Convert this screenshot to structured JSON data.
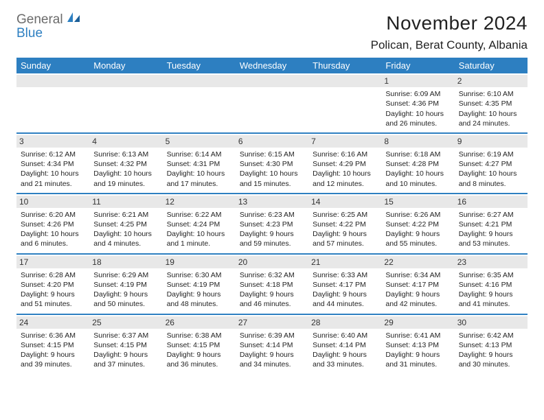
{
  "brand": {
    "general": "General",
    "blue": "Blue"
  },
  "title": "November 2024",
  "location": "Polican, Berat County, Albania",
  "colors": {
    "header_bg": "#2d7fc1",
    "header_text": "#ffffff",
    "daynum_bg": "#e8e8e8",
    "week_sep": "#2d7fc1",
    "text": "#222222",
    "page_bg": "#ffffff"
  },
  "weekdays": [
    "Sunday",
    "Monday",
    "Tuesday",
    "Wednesday",
    "Thursday",
    "Friday",
    "Saturday"
  ],
  "weeks": [
    [
      null,
      null,
      null,
      null,
      null,
      {
        "n": "1",
        "sr": "6:09 AM",
        "ss": "4:36 PM",
        "dl": "10 hours and 26 minutes."
      },
      {
        "n": "2",
        "sr": "6:10 AM",
        "ss": "4:35 PM",
        "dl": "10 hours and 24 minutes."
      }
    ],
    [
      {
        "n": "3",
        "sr": "6:12 AM",
        "ss": "4:34 PM",
        "dl": "10 hours and 21 minutes."
      },
      {
        "n": "4",
        "sr": "6:13 AM",
        "ss": "4:32 PM",
        "dl": "10 hours and 19 minutes."
      },
      {
        "n": "5",
        "sr": "6:14 AM",
        "ss": "4:31 PM",
        "dl": "10 hours and 17 minutes."
      },
      {
        "n": "6",
        "sr": "6:15 AM",
        "ss": "4:30 PM",
        "dl": "10 hours and 15 minutes."
      },
      {
        "n": "7",
        "sr": "6:16 AM",
        "ss": "4:29 PM",
        "dl": "10 hours and 12 minutes."
      },
      {
        "n": "8",
        "sr": "6:18 AM",
        "ss": "4:28 PM",
        "dl": "10 hours and 10 minutes."
      },
      {
        "n": "9",
        "sr": "6:19 AM",
        "ss": "4:27 PM",
        "dl": "10 hours and 8 minutes."
      }
    ],
    [
      {
        "n": "10",
        "sr": "6:20 AM",
        "ss": "4:26 PM",
        "dl": "10 hours and 6 minutes."
      },
      {
        "n": "11",
        "sr": "6:21 AM",
        "ss": "4:25 PM",
        "dl": "10 hours and 4 minutes."
      },
      {
        "n": "12",
        "sr": "6:22 AM",
        "ss": "4:24 PM",
        "dl": "10 hours and 1 minute."
      },
      {
        "n": "13",
        "sr": "6:23 AM",
        "ss": "4:23 PM",
        "dl": "9 hours and 59 minutes."
      },
      {
        "n": "14",
        "sr": "6:25 AM",
        "ss": "4:22 PM",
        "dl": "9 hours and 57 minutes."
      },
      {
        "n": "15",
        "sr": "6:26 AM",
        "ss": "4:22 PM",
        "dl": "9 hours and 55 minutes."
      },
      {
        "n": "16",
        "sr": "6:27 AM",
        "ss": "4:21 PM",
        "dl": "9 hours and 53 minutes."
      }
    ],
    [
      {
        "n": "17",
        "sr": "6:28 AM",
        "ss": "4:20 PM",
        "dl": "9 hours and 51 minutes."
      },
      {
        "n": "18",
        "sr": "6:29 AM",
        "ss": "4:19 PM",
        "dl": "9 hours and 50 minutes."
      },
      {
        "n": "19",
        "sr": "6:30 AM",
        "ss": "4:19 PM",
        "dl": "9 hours and 48 minutes."
      },
      {
        "n": "20",
        "sr": "6:32 AM",
        "ss": "4:18 PM",
        "dl": "9 hours and 46 minutes."
      },
      {
        "n": "21",
        "sr": "6:33 AM",
        "ss": "4:17 PM",
        "dl": "9 hours and 44 minutes."
      },
      {
        "n": "22",
        "sr": "6:34 AM",
        "ss": "4:17 PM",
        "dl": "9 hours and 42 minutes."
      },
      {
        "n": "23",
        "sr": "6:35 AM",
        "ss": "4:16 PM",
        "dl": "9 hours and 41 minutes."
      }
    ],
    [
      {
        "n": "24",
        "sr": "6:36 AM",
        "ss": "4:15 PM",
        "dl": "9 hours and 39 minutes."
      },
      {
        "n": "25",
        "sr": "6:37 AM",
        "ss": "4:15 PM",
        "dl": "9 hours and 37 minutes."
      },
      {
        "n": "26",
        "sr": "6:38 AM",
        "ss": "4:15 PM",
        "dl": "9 hours and 36 minutes."
      },
      {
        "n": "27",
        "sr": "6:39 AM",
        "ss": "4:14 PM",
        "dl": "9 hours and 34 minutes."
      },
      {
        "n": "28",
        "sr": "6:40 AM",
        "ss": "4:14 PM",
        "dl": "9 hours and 33 minutes."
      },
      {
        "n": "29",
        "sr": "6:41 AM",
        "ss": "4:13 PM",
        "dl": "9 hours and 31 minutes."
      },
      {
        "n": "30",
        "sr": "6:42 AM",
        "ss": "4:13 PM",
        "dl": "9 hours and 30 minutes."
      }
    ]
  ],
  "labels": {
    "sunrise": "Sunrise:",
    "sunset": "Sunset:",
    "daylight": "Daylight:"
  }
}
